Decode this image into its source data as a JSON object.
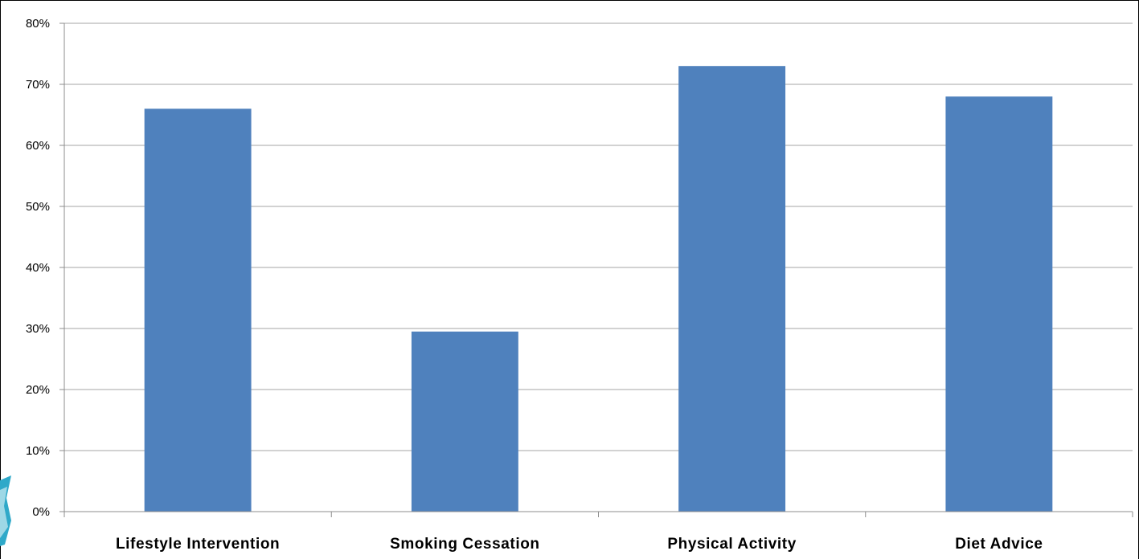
{
  "chart_data": {
    "type": "bar",
    "categories": [
      "Lifestyle Intervention",
      "Smoking Cessation",
      "Physical Activity",
      "Diet Advice"
    ],
    "values": [
      66,
      29.5,
      73,
      68
    ],
    "value_unit": "%",
    "title": "",
    "xlabel": "",
    "ylabel": "",
    "ylim": [
      0,
      80
    ],
    "yticks": [
      "0%",
      "10%",
      "20%",
      "30%",
      "40%",
      "50%",
      "60%",
      "70%",
      "80%"
    ],
    "grid": true,
    "legend": "none",
    "bar_color": "#4F81BD",
    "gridline_color": "#A6A6A6"
  }
}
